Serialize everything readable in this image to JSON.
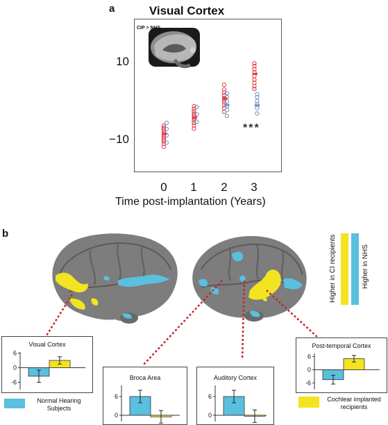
{
  "panel_a": {
    "letter": "a",
    "title": "Visual Cortex",
    "inset_label": "CIP > NHS",
    "significance": "***",
    "y_ticks": [
      "10",
      "−10"
    ],
    "x_ticks": [
      "0",
      "1",
      "2",
      "3"
    ],
    "xlabel": "Time post-implantation (Years)"
  },
  "panel_b": {
    "letter": "b",
    "legend_red_label": "Higher in CI recipients",
    "legend_blue_label": "Higher in NHS",
    "legend_normal": "Normal Hearing Subjects",
    "legend_ci": "Cochlear implanted recipients"
  },
  "colors": {
    "blue": "#5bbfde",
    "yellow": "#f3e421",
    "red_dotted": "#cc2222",
    "scatter_red": "#e23b45",
    "scatter_blue": "#6f8fc4"
  },
  "chart_data": [
    {
      "type": "scatter",
      "title": "Visual Cortex",
      "xlabel": "Time post-implantation (Years)",
      "ylabel": "",
      "ylim": [
        -20,
        20
      ],
      "xlim": [
        -1,
        4
      ],
      "x_ticks": [
        0,
        1,
        2,
        3
      ],
      "y_ticks": [
        10,
        -10
      ],
      "series": [
        {
          "color": "red",
          "points": [
            [
              0,
              -5.5
            ],
            [
              0,
              -6.0
            ],
            [
              0,
              -6.5
            ],
            [
              0,
              -7.0
            ],
            [
              0,
              -7.4
            ],
            [
              0,
              -7.8
            ],
            [
              0,
              -8.2
            ],
            [
              0,
              -8.7
            ],
            [
              0,
              -9.2
            ],
            [
              0,
              -9.6
            ],
            [
              0,
              -10.2
            ],
            [
              0,
              -11.0
            ],
            [
              1,
              -0.5
            ],
            [
              1,
              -1.2
            ],
            [
              1,
              -1.8
            ],
            [
              1,
              -2.4
            ],
            [
              1,
              -2.9
            ],
            [
              1,
              -3.3
            ],
            [
              1,
              -3.7
            ],
            [
              1,
              -4.2
            ],
            [
              1,
              -4.8
            ],
            [
              1,
              -5.5
            ],
            [
              1,
              -6.3
            ],
            [
              2,
              5.0
            ],
            [
              2,
              3.8
            ],
            [
              2,
              3.0
            ],
            [
              2,
              2.3
            ],
            [
              2,
              1.6
            ],
            [
              2,
              1.0
            ],
            [
              2,
              0.5
            ],
            [
              2,
              -0.3
            ],
            [
              2,
              -1.0
            ],
            [
              2,
              -2.0
            ],
            [
              3,
              10.5
            ],
            [
              3,
              9.8
            ],
            [
              3,
              9.0
            ],
            [
              3,
              8.2
            ],
            [
              3,
              7.2
            ],
            [
              3,
              6.3
            ],
            [
              3,
              5.5
            ],
            [
              3,
              4.6
            ],
            [
              3,
              3.9
            ]
          ]
        },
        {
          "color": "blue",
          "points": [
            [
              0,
              -4.8
            ],
            [
              0,
              -6.4
            ],
            [
              0,
              -8.0
            ],
            [
              0,
              -9.9
            ],
            [
              1,
              -0.7
            ],
            [
              1,
              -2.6
            ],
            [
              1,
              -4.5
            ],
            [
              2,
              2.8
            ],
            [
              2,
              1.8
            ],
            [
              2,
              0.7
            ],
            [
              2,
              -0.5
            ],
            [
              2,
              -1.5
            ],
            [
              2,
              -3.0
            ],
            [
              3,
              2.6
            ],
            [
              3,
              1.8
            ],
            [
              3,
              0.8
            ],
            [
              3,
              0.0
            ],
            [
              3,
              -1.0
            ],
            [
              3,
              -2.4
            ]
          ]
        }
      ],
      "means": [
        {
          "color": "red",
          "values": [
            [
              0,
              -7.6
            ],
            [
              1,
              -3.4
            ],
            [
              2,
              1.5
            ],
            [
              3,
              7.8
            ]
          ]
        },
        {
          "color": "blue",
          "values": [
            [
              2,
              -0.2
            ],
            [
              3,
              -0.3
            ]
          ]
        }
      ],
      "annotations": [
        "CIP > NHS",
        "***"
      ]
    },
    {
      "type": "bar",
      "title": "Visual Cortex",
      "categories": [
        "Normal Hearing Subjects",
        "Cochlear implanted recipients"
      ],
      "values": [
        -3.5,
        3.0
      ],
      "errors": [
        2.5,
        1.5
      ],
      "y_ticks": [
        6,
        0,
        -6
      ],
      "ylim": [
        -9,
        7
      ]
    },
    {
      "type": "bar",
      "title": "Broca Area",
      "categories": [
        "Normal Hearing Subjects",
        "Cochlear implanted recipients"
      ],
      "values": [
        6.0,
        -0.5
      ],
      "errors": [
        2.0,
        2.0
      ],
      "y_ticks": [
        6,
        0
      ],
      "ylim": [
        -2,
        10
      ]
    },
    {
      "type": "bar",
      "title": "Auditory Cortex",
      "categories": [
        "Normal Hearing Subjects",
        "Cochlear implanted recipients"
      ],
      "values": [
        6.0,
        -0.3
      ],
      "errors": [
        2.0,
        2.0
      ],
      "y_ticks": [
        6,
        0
      ],
      "ylim": [
        -2,
        10
      ]
    },
    {
      "type": "bar",
      "title": "Post-temporal Cortex",
      "categories": [
        "Normal Hearing Subjects",
        "Cochlear implanted recipients"
      ],
      "values": [
        -4.5,
        5.0
      ],
      "errors": [
        2.0,
        1.5
      ],
      "y_ticks": [
        6,
        0,
        -6
      ],
      "ylim": [
        -9,
        8
      ]
    }
  ]
}
